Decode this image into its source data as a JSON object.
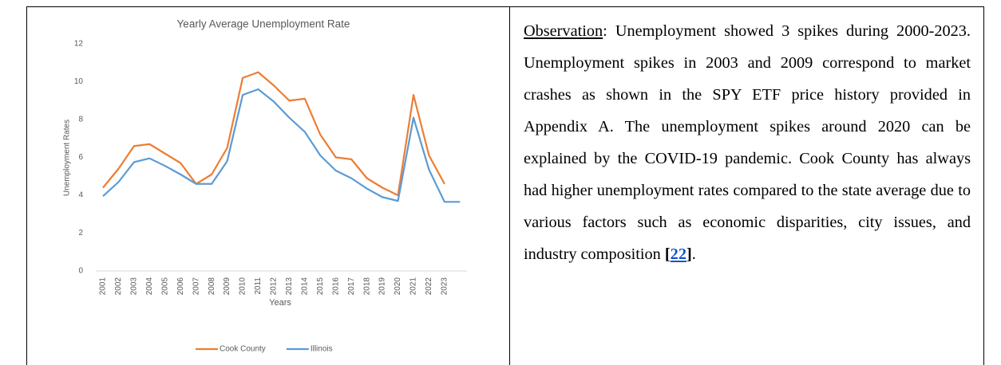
{
  "chart_data": {
    "type": "line",
    "title": "Yearly Average Unemployment Rate",
    "x_label": "Years",
    "y_label": "Unemployment Rates",
    "categories": [
      "2001",
      "2002",
      "2003",
      "2004",
      "2005",
      "2006",
      "2007",
      "2008",
      "2009",
      "2010",
      "2011",
      "2012",
      "2013",
      "2014",
      "2015",
      "2016",
      "2017",
      "2018",
      "2019",
      "2020",
      "2021",
      "2022",
      "2023",
      null
    ],
    "series": [
      {
        "name": "Cook County",
        "color": "#ed7d31",
        "values": [
          4.4,
          5.4,
          6.6,
          6.7,
          6.2,
          5.7,
          4.6,
          5.1,
          6.5,
          10.2,
          10.5,
          9.8,
          9.0,
          9.1,
          7.2,
          6.0,
          5.9,
          4.9,
          4.4,
          4.0,
          9.3,
          6.1,
          4.6,
          null
        ]
      },
      {
        "name": "Illinois",
        "color": "#5b9bd5",
        "values": [
          3.95,
          4.7,
          5.75,
          5.95,
          5.55,
          5.1,
          4.6,
          4.6,
          5.8,
          9.3,
          9.6,
          8.95,
          8.1,
          7.35,
          6.1,
          5.3,
          4.9,
          4.35,
          3.9,
          3.7,
          8.1,
          5.35,
          3.65,
          3.65
        ]
      }
    ],
    "ylim": [
      0,
      12
    ],
    "yticks": [
      0,
      2,
      4,
      6,
      8,
      10,
      12
    ],
    "legend": "bottom"
  },
  "observation": {
    "label": "Observation",
    "text": ": Unemployment showed 3 spikes during 2000-2023. Unemployment spikes in 2003 and 2009 correspond to market crashes as shown in the SPY ETF price history provided in Appendix A. The unemployment spikes around 2020 can be explained by the COVID-19 pandemic. Cook County has always had higher unemployment rates compared to the state average due to various factors such as economic disparities, city issues, and industry composition ",
    "citation": {
      "open": "[",
      "ref": "22",
      "close": "]"
    },
    "end": "."
  }
}
